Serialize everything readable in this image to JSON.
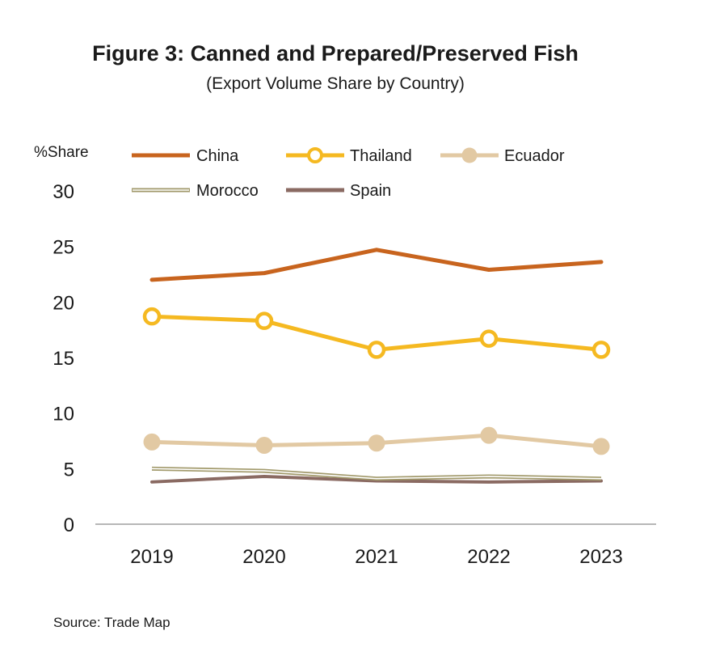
{
  "chart_data": {
    "type": "line",
    "title": "Figure 3: Canned and Prepared/Preserved Fish",
    "subtitle": "(Export Volume Share by Country)",
    "ylabel": "%Share",
    "xlabel": "",
    "categories": [
      "2019",
      "2020",
      "2021",
      "2022",
      "2023"
    ],
    "ylim": [
      0,
      30
    ],
    "yticks": [
      0,
      5,
      10,
      15,
      20,
      25,
      30
    ],
    "legend_position": "top",
    "series": [
      {
        "name": "China",
        "values": [
          22.0,
          22.6,
          24.7,
          22.9,
          23.6
        ],
        "color": "#C8641E",
        "marker": "none"
      },
      {
        "name": "Thailand",
        "values": [
          18.7,
          18.3,
          15.7,
          16.7,
          15.7
        ],
        "color": "#F5B921",
        "marker": "hollow-circle"
      },
      {
        "name": "Ecuador",
        "values": [
          7.4,
          7.1,
          7.3,
          8.0,
          7.0
        ],
        "color": "#E2C9A3",
        "marker": "filled-circle"
      },
      {
        "name": "Morocco",
        "values": [
          5.0,
          4.8,
          4.1,
          4.3,
          4.1
        ],
        "color": "#A29A6C",
        "marker": "none",
        "style": "double"
      },
      {
        "name": "Spain",
        "values": [
          3.8,
          4.3,
          3.9,
          3.8,
          3.9
        ],
        "color": "#8A6A62",
        "marker": "none"
      }
    ],
    "source": "Source: Trade Map"
  }
}
